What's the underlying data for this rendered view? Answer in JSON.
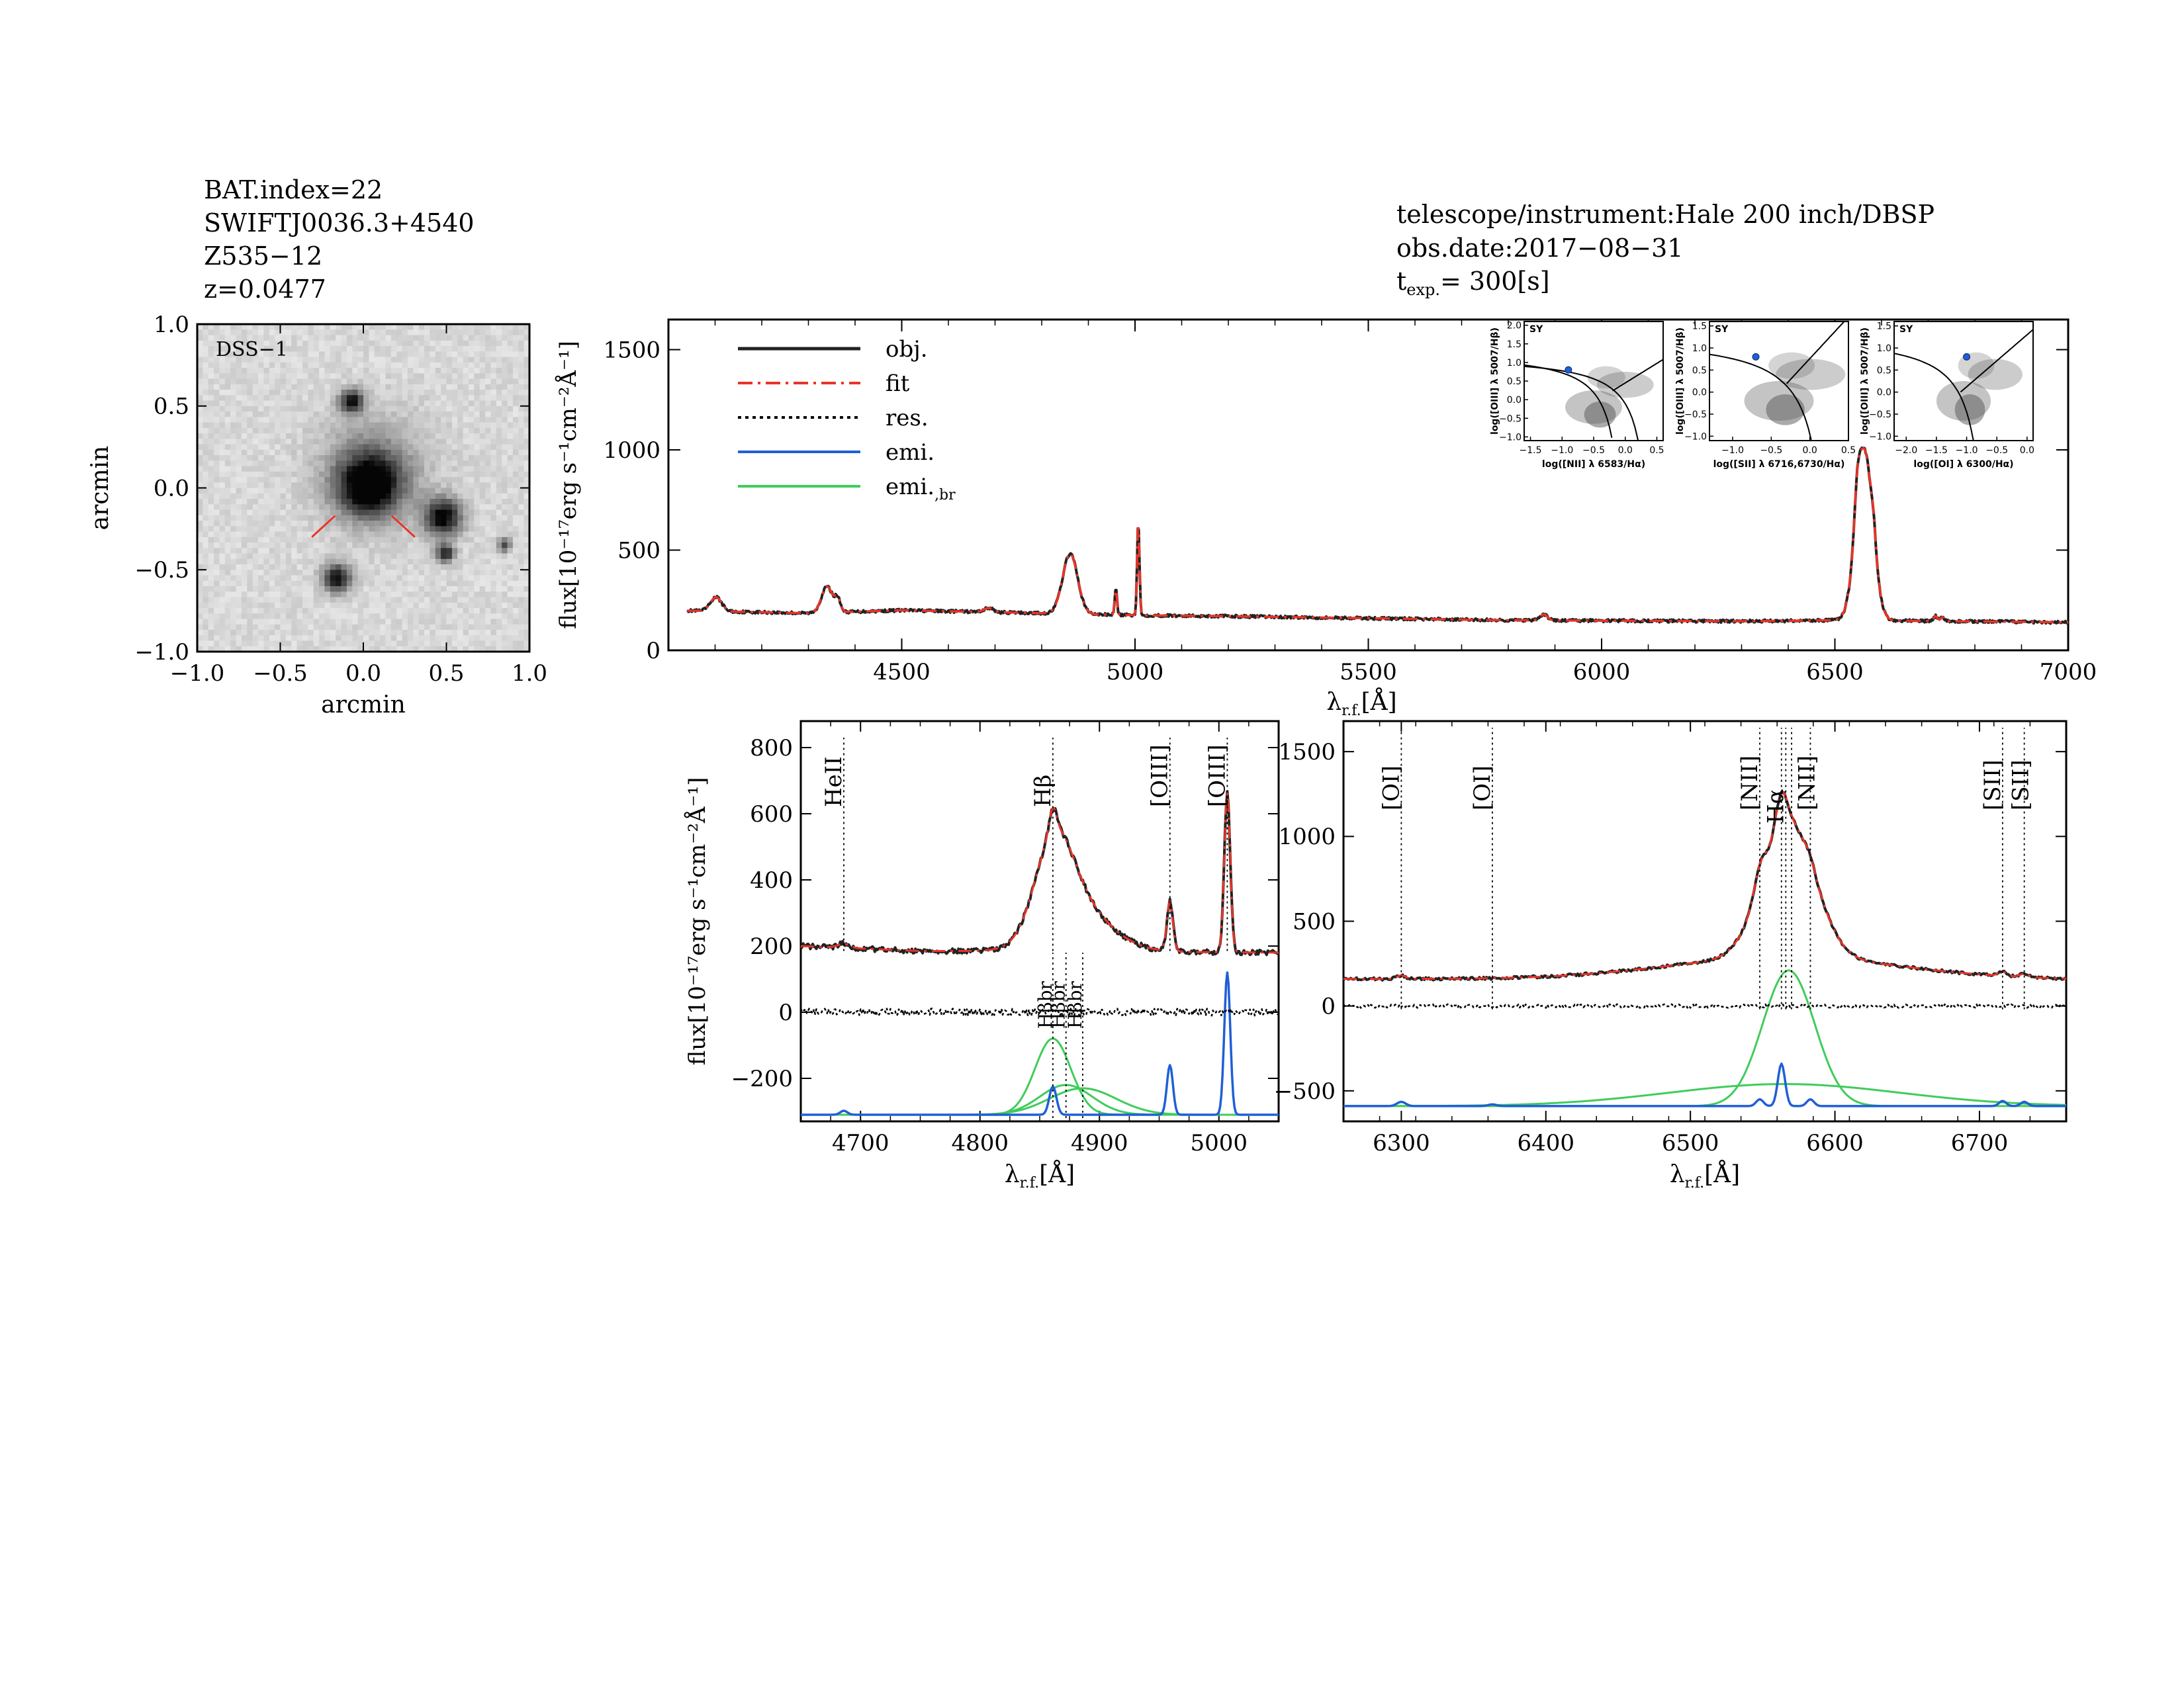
{
  "header": {
    "left_lines": [
      "BAT.index=22",
      "SWIFTJ0036.3+4540",
      "Z535−12",
      "z=0.0477"
    ],
    "right_lines": [
      "telescope/instrument:Hale 200 inch/DBSP",
      "obs.date:2017−08−31"
    ],
    "texp_prefix": "t",
    "texp_sub": "exp.",
    "texp_value": "= 300[s]"
  },
  "chart_data": [
    {
      "id": "dss_image",
      "type": "heatmap",
      "label": "DSS−1",
      "xlabel": "arcmin",
      "ylabel": "arcmin",
      "xlim": [
        -1.0,
        1.0
      ],
      "ylim": [
        -1.0,
        1.0
      ],
      "xticks": [
        "−1.0",
        "−0.5",
        "0.0",
        "0.5",
        "1.0"
      ],
      "yticks": [
        "1.0",
        "0.5",
        "0.0",
        "−0.5",
        "−1.0"
      ],
      "sources": [
        {
          "x": 0.03,
          "y": 0.01,
          "r": 0.13,
          "peak": 0.95
        },
        {
          "x": 0.06,
          "y": 0.12,
          "r": 0.22,
          "peak": 0.35
        },
        {
          "x": 0.48,
          "y": -0.18,
          "r": 0.08,
          "peak": 0.95
        },
        {
          "x": -0.07,
          "y": 0.53,
          "r": 0.05,
          "peak": 0.9
        },
        {
          "x": -0.16,
          "y": -0.55,
          "r": 0.06,
          "peak": 0.9
        },
        {
          "x": 0.49,
          "y": -0.4,
          "r": 0.04,
          "peak": 0.8
        },
        {
          "x": 0.85,
          "y": -0.35,
          "r": 0.03,
          "peak": 0.6
        }
      ],
      "marker_color": "#e8352a"
    },
    {
      "id": "main_spectrum",
      "type": "line",
      "xlabel_prefix": "λ",
      "xlabel_sub": "r.f.",
      "xlabel_suffix": "[Å]",
      "ylabel": "flux[10⁻¹⁷erg s⁻¹cm⁻²Å⁻¹]",
      "xlim": [
        4000,
        7000
      ],
      "ylim": [
        0,
        1650
      ],
      "xticks": [
        4500,
        5000,
        5500,
        6000,
        6500,
        7000
      ],
      "yticks": [
        0,
        500,
        1000,
        1500
      ],
      "legend": [
        "obj.",
        "fit",
        "res.",
        "emi.",
        "emi.,br"
      ],
      "legend_sub_text": "br",
      "continuum": [
        [
          4000,
          200
        ],
        [
          4300,
          185
        ],
        [
          4500,
          200
        ],
        [
          4800,
          185
        ],
        [
          5000,
          175
        ],
        [
          5200,
          170
        ],
        [
          5500,
          160
        ],
        [
          5800,
          150
        ],
        [
          6000,
          148
        ],
        [
          6300,
          145
        ],
        [
          6500,
          150
        ],
        [
          7000,
          140
        ]
      ],
      "lines": [
        {
          "center": 4102,
          "amp": 70,
          "sigma": 12
        },
        {
          "center": 4340,
          "amp": 130,
          "sigma": 12
        },
        {
          "center": 4363,
          "amp": 60,
          "sigma": 6
        },
        {
          "center": 4686,
          "amp": 20,
          "sigma": 10
        },
        {
          "center": 4861,
          "amp": 300,
          "sigma": 16
        },
        {
          "center": 4959,
          "amp": 130,
          "sigma": 2.5
        },
        {
          "center": 5007,
          "amp": 470,
          "sigma": 2.5
        },
        {
          "center": 5876,
          "amp": 30,
          "sigma": 8
        },
        {
          "center": 6548,
          "amp": 150,
          "sigma": 6
        },
        {
          "center": 6563,
          "amp": 850,
          "sigma": 18
        },
        {
          "center": 6583,
          "amp": 80,
          "sigma": 5
        },
        {
          "center": 6716,
          "amp": 25,
          "sigma": 4
        },
        {
          "center": 6731,
          "amp": 20,
          "sigma": 4
        }
      ],
      "colors": {
        "obj": "#222222",
        "fit": "#e8352a",
        "res": "#000000",
        "emi": "#1f5fd6",
        "emi_br": "#3fcc5a"
      }
    },
    {
      "id": "hbeta_zoom",
      "type": "line",
      "xlabel_prefix": "λ",
      "xlabel_sub": "r.f.",
      "xlabel_suffix": "[Å]",
      "ylabel": "flux[10⁻¹⁷erg s⁻¹cm⁻²Å⁻¹]",
      "xlim": [
        4650,
        5050
      ],
      "ylim": [
        -330,
        880
      ],
      "xticks": [
        4700,
        4800,
        4900,
        5000
      ],
      "yticks": [
        -200,
        0,
        200,
        400,
        600,
        800
      ],
      "line_markers": [
        {
          "x": 4686,
          "label": "HeII",
          "y_from": 185,
          "y_to": 830
        },
        {
          "x": 4861,
          "label": "Hβ",
          "y_from": 185,
          "y_to": 830
        },
        {
          "x": 4959,
          "label": "[OIII]",
          "y_from": 185,
          "y_to": 830
        },
        {
          "x": 5007,
          "label": "[OIII]",
          "y_from": 185,
          "y_to": 830
        },
        {
          "x": 4861,
          "label": "Hβbr",
          "y_from": -320,
          "y_to": 180
        },
        {
          "x": 4872,
          "label": "Hβbr",
          "y_from": -320,
          "y_to": 180
        },
        {
          "x": 4886,
          "label": "Hβbr",
          "y_from": -320,
          "y_to": 180
        }
      ],
      "label_texts": {
        "HeII": "HeII",
        "Hbeta": "Hβ",
        "OIII": "[OIII]",
        "Hbeta_br": "Hβbr"
      },
      "emi_narrow": [
        {
          "center": 4686,
          "amp": 12,
          "sigma": 3
        },
        {
          "center": 4861,
          "amp": 85,
          "sigma": 3
        },
        {
          "center": 4959,
          "amp": 150,
          "sigma": 2.5
        },
        {
          "center": 5007,
          "amp": 430,
          "sigma": 2.5
        }
      ],
      "emi_broad": [
        {
          "center": 4861,
          "amp": 230,
          "sigma": 15
        },
        {
          "center": 4872,
          "amp": 90,
          "sigma": 22
        },
        {
          "center": 4886,
          "amp": 80,
          "sigma": 28
        }
      ],
      "emi_baseline": -310
    },
    {
      "id": "halpha_zoom",
      "type": "line",
      "xlabel_prefix": "λ",
      "xlabel_sub": "r.f.",
      "xlabel_suffix": "[Å]",
      "xlim": [
        6260,
        6760
      ],
      "ylim": [
        -680,
        1680
      ],
      "xticks": [
        6300,
        6400,
        6500,
        6600,
        6700
      ],
      "yticks": [
        -500,
        0,
        500,
        1000,
        1500
      ],
      "line_markers": [
        {
          "x": 6300,
          "label": "[OI]"
        },
        {
          "x": 6363,
          "label": "[OI]"
        },
        {
          "x": 6548,
          "label": "[NII]"
        },
        {
          "x": 6563,
          "label": "Hα"
        },
        {
          "x": 6566,
          "label": "Hα"
        },
        {
          "x": 6570,
          "label": "Hα"
        },
        {
          "x": 6583,
          "label": "[NII]"
        },
        {
          "x": 6716,
          "label": "[SII]"
        },
        {
          "x": 6731,
          "label": "[SII]"
        }
      ],
      "label_texts": {
        "OI": "[OI]",
        "NII": "[NII]",
        "Halpha": "Hα",
        "SII": "[SII]"
      },
      "emi_narrow": [
        {
          "center": 6300,
          "amp": 25,
          "sigma": 3
        },
        {
          "center": 6363,
          "amp": 10,
          "sigma": 3
        },
        {
          "center": 6548,
          "amp": 40,
          "sigma": 2.5
        },
        {
          "center": 6563,
          "amp": 250,
          "sigma": 2.5
        },
        {
          "center": 6583,
          "amp": 40,
          "sigma": 2.5
        },
        {
          "center": 6716,
          "amp": 30,
          "sigma": 2.5
        },
        {
          "center": 6731,
          "amp": 25,
          "sigma": 2.5
        }
      ],
      "emi_broad": [
        {
          "center": 6568,
          "amp": 800,
          "sigma": 18
        },
        {
          "center": 6565,
          "amp": 130,
          "sigma": 80
        }
      ],
      "emi_baseline": -590
    },
    {
      "id": "bpt_nii",
      "type": "scatter",
      "label": "SY",
      "xlabel": "log([NII] λ 6583/Hα)",
      "ylabel": "log([OIII] λ 5007/Hβ)",
      "xlim": [
        -1.6,
        0.6
      ],
      "ylim": [
        -1.1,
        2.1
      ],
      "xticks": [
        "−1.5",
        "−1.0",
        "−0.5",
        "0.0",
        "0.5"
      ],
      "yticks": [
        "2.0",
        "1.5",
        "1.0",
        "0.5",
        "0.0",
        "−0.5",
        "−1.0"
      ],
      "point": {
        "x": -0.9,
        "y": 0.8
      }
    },
    {
      "id": "bpt_sii",
      "type": "scatter",
      "label": "SY",
      "xlabel": "log([SII] λ 6716,6730/Hα)",
      "ylabel": "log([OIII] λ 5007/Hβ)",
      "xlim": [
        -1.3,
        0.5
      ],
      "ylim": [
        -1.1,
        1.6
      ],
      "xticks": [
        "−1.0",
        "−0.5",
        "0.0",
        "0.5"
      ],
      "yticks": [
        "1.5",
        "1.0",
        "0.5",
        "0.0",
        "−0.5",
        "−1.0"
      ],
      "point": {
        "x": -0.7,
        "y": 0.8
      }
    },
    {
      "id": "bpt_oi",
      "type": "scatter",
      "label": "SY",
      "xlabel": "log([OI] λ 6300/Hα)",
      "ylabel": "log([OIII] λ 5007/Hβ)",
      "xlim": [
        -2.2,
        0.1
      ],
      "ylim": [
        -1.1,
        1.6
      ],
      "xticks": [
        "−2.0",
        "−1.5",
        "−1.0",
        "−0.5",
        "0.0"
      ],
      "yticks": [
        "1.5",
        "1.0",
        "0.5",
        "0.0",
        "−0.5",
        "−1.0"
      ],
      "point": {
        "x": -1.0,
        "y": 0.8
      }
    }
  ]
}
